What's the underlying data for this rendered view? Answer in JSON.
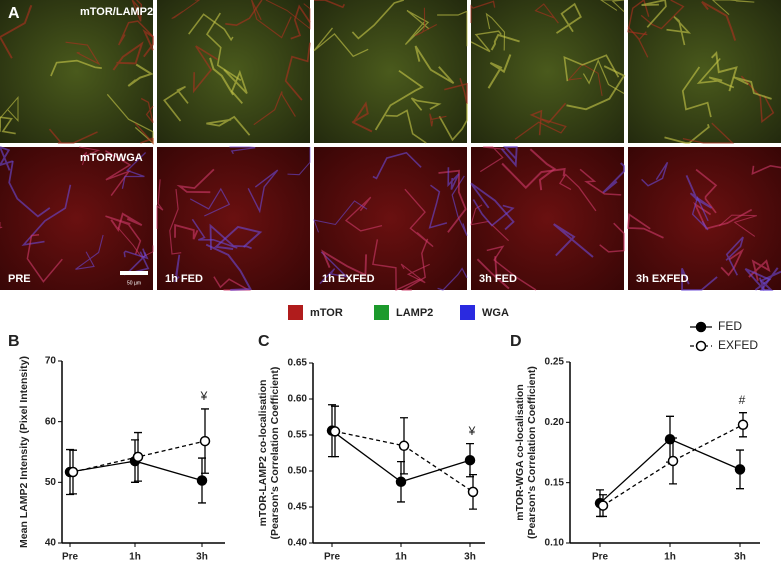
{
  "panel_a": {
    "letter": "A",
    "row_labels": [
      "mTOR/LAMP2",
      "mTOR/WGA"
    ],
    "image_labels": [
      "PRE",
      "1h FED",
      "1h EXFED",
      "3h FED",
      "3h EXFED"
    ],
    "scale_bar": "50 µm",
    "legend": [
      {
        "name": "mTOR",
        "color": "#b01c1c"
      },
      {
        "name": "LAMP2",
        "color": "#1c9a2c"
      },
      {
        "name": "WGA",
        "color": "#2a2ae0"
      }
    ]
  },
  "chart_data": [
    {
      "type": "line",
      "letter": "B",
      "ylabel": [
        "Mean LAMP2 Intensity (Pixel Intensity)"
      ],
      "categories": [
        "Pre",
        "1h",
        "3h"
      ],
      "ylim": [
        40,
        70
      ],
      "yticks": [
        40,
        50,
        60,
        70
      ],
      "legend": false,
      "series": [
        {
          "name": "FED",
          "color": "#000000",
          "line_style": "solid",
          "marker": "filled",
          "values": [
            51.7,
            53.5,
            50.3
          ],
          "errors": [
            3.7,
            3.5,
            3.7
          ]
        },
        {
          "name": "EXFED",
          "color": "#000000",
          "line_style": "dashed",
          "marker": "open",
          "values": [
            51.7,
            54.2,
            56.8
          ],
          "errors": [
            3.6,
            4.0,
            5.3
          ]
        }
      ],
      "annotations": [
        {
          "text": "¥",
          "x": "3h"
        }
      ]
    },
    {
      "type": "line",
      "letter": "C",
      "ylabel": [
        "mTOR-LAMP2 co-localisation",
        "(Pearson's Correlation Coefficient)"
      ],
      "categories": [
        "Pre",
        "1h",
        "3h"
      ],
      "ylim": [
        0.4,
        0.65
      ],
      "yticks": [
        {
          "value": 0.4,
          "label": "0.40"
        },
        0.45,
        {
          "value": 0.5,
          "label": "0.50"
        },
        0.55,
        {
          "value": 0.6,
          "label": "0.60"
        },
        0.65
      ],
      "legend": false,
      "series": [
        {
          "name": "FED",
          "color": "#000000",
          "line_style": "solid",
          "marker": "filled",
          "values": [
            0.556,
            0.485,
            0.515
          ],
          "errors": [
            0.036,
            0.028,
            0.023
          ]
        },
        {
          "name": "EXFED",
          "color": "#000000",
          "line_style": "dashed",
          "marker": "open",
          "values": [
            0.555,
            0.535,
            0.471
          ],
          "errors": [
            0.035,
            0.039,
            0.024
          ]
        }
      ],
      "annotations": [
        {
          "text": "¥",
          "x": "3h"
        }
      ]
    },
    {
      "type": "line",
      "letter": "D",
      "ylabel": [
        "mTOR-WGA co-localisation",
        "(Pearson's Correlation Coefficient)"
      ],
      "categories": [
        "Pre",
        "1h",
        "3h"
      ],
      "ylim": [
        0.1,
        0.25
      ],
      "yticks": [
        {
          "value": 0.1,
          "label": "0.10"
        },
        0.15,
        {
          "value": 0.2,
          "label": "0.20"
        },
        0.25
      ],
      "legend": true,
      "series": [
        {
          "name": "FED",
          "color": "#000000",
          "line_style": "solid",
          "marker": "filled",
          "values": [
            0.133,
            0.186,
            0.161
          ],
          "errors": [
            0.011,
            0.019,
            0.016
          ]
        },
        {
          "name": "EXFED",
          "color": "#000000",
          "line_style": "dashed",
          "marker": "open",
          "values": [
            0.131,
            0.168,
            0.198
          ],
          "errors": [
            0.009,
            0.019,
            0.01
          ]
        }
      ],
      "annotations": [
        {
          "text": "#",
          "x": "3h"
        }
      ]
    }
  ]
}
